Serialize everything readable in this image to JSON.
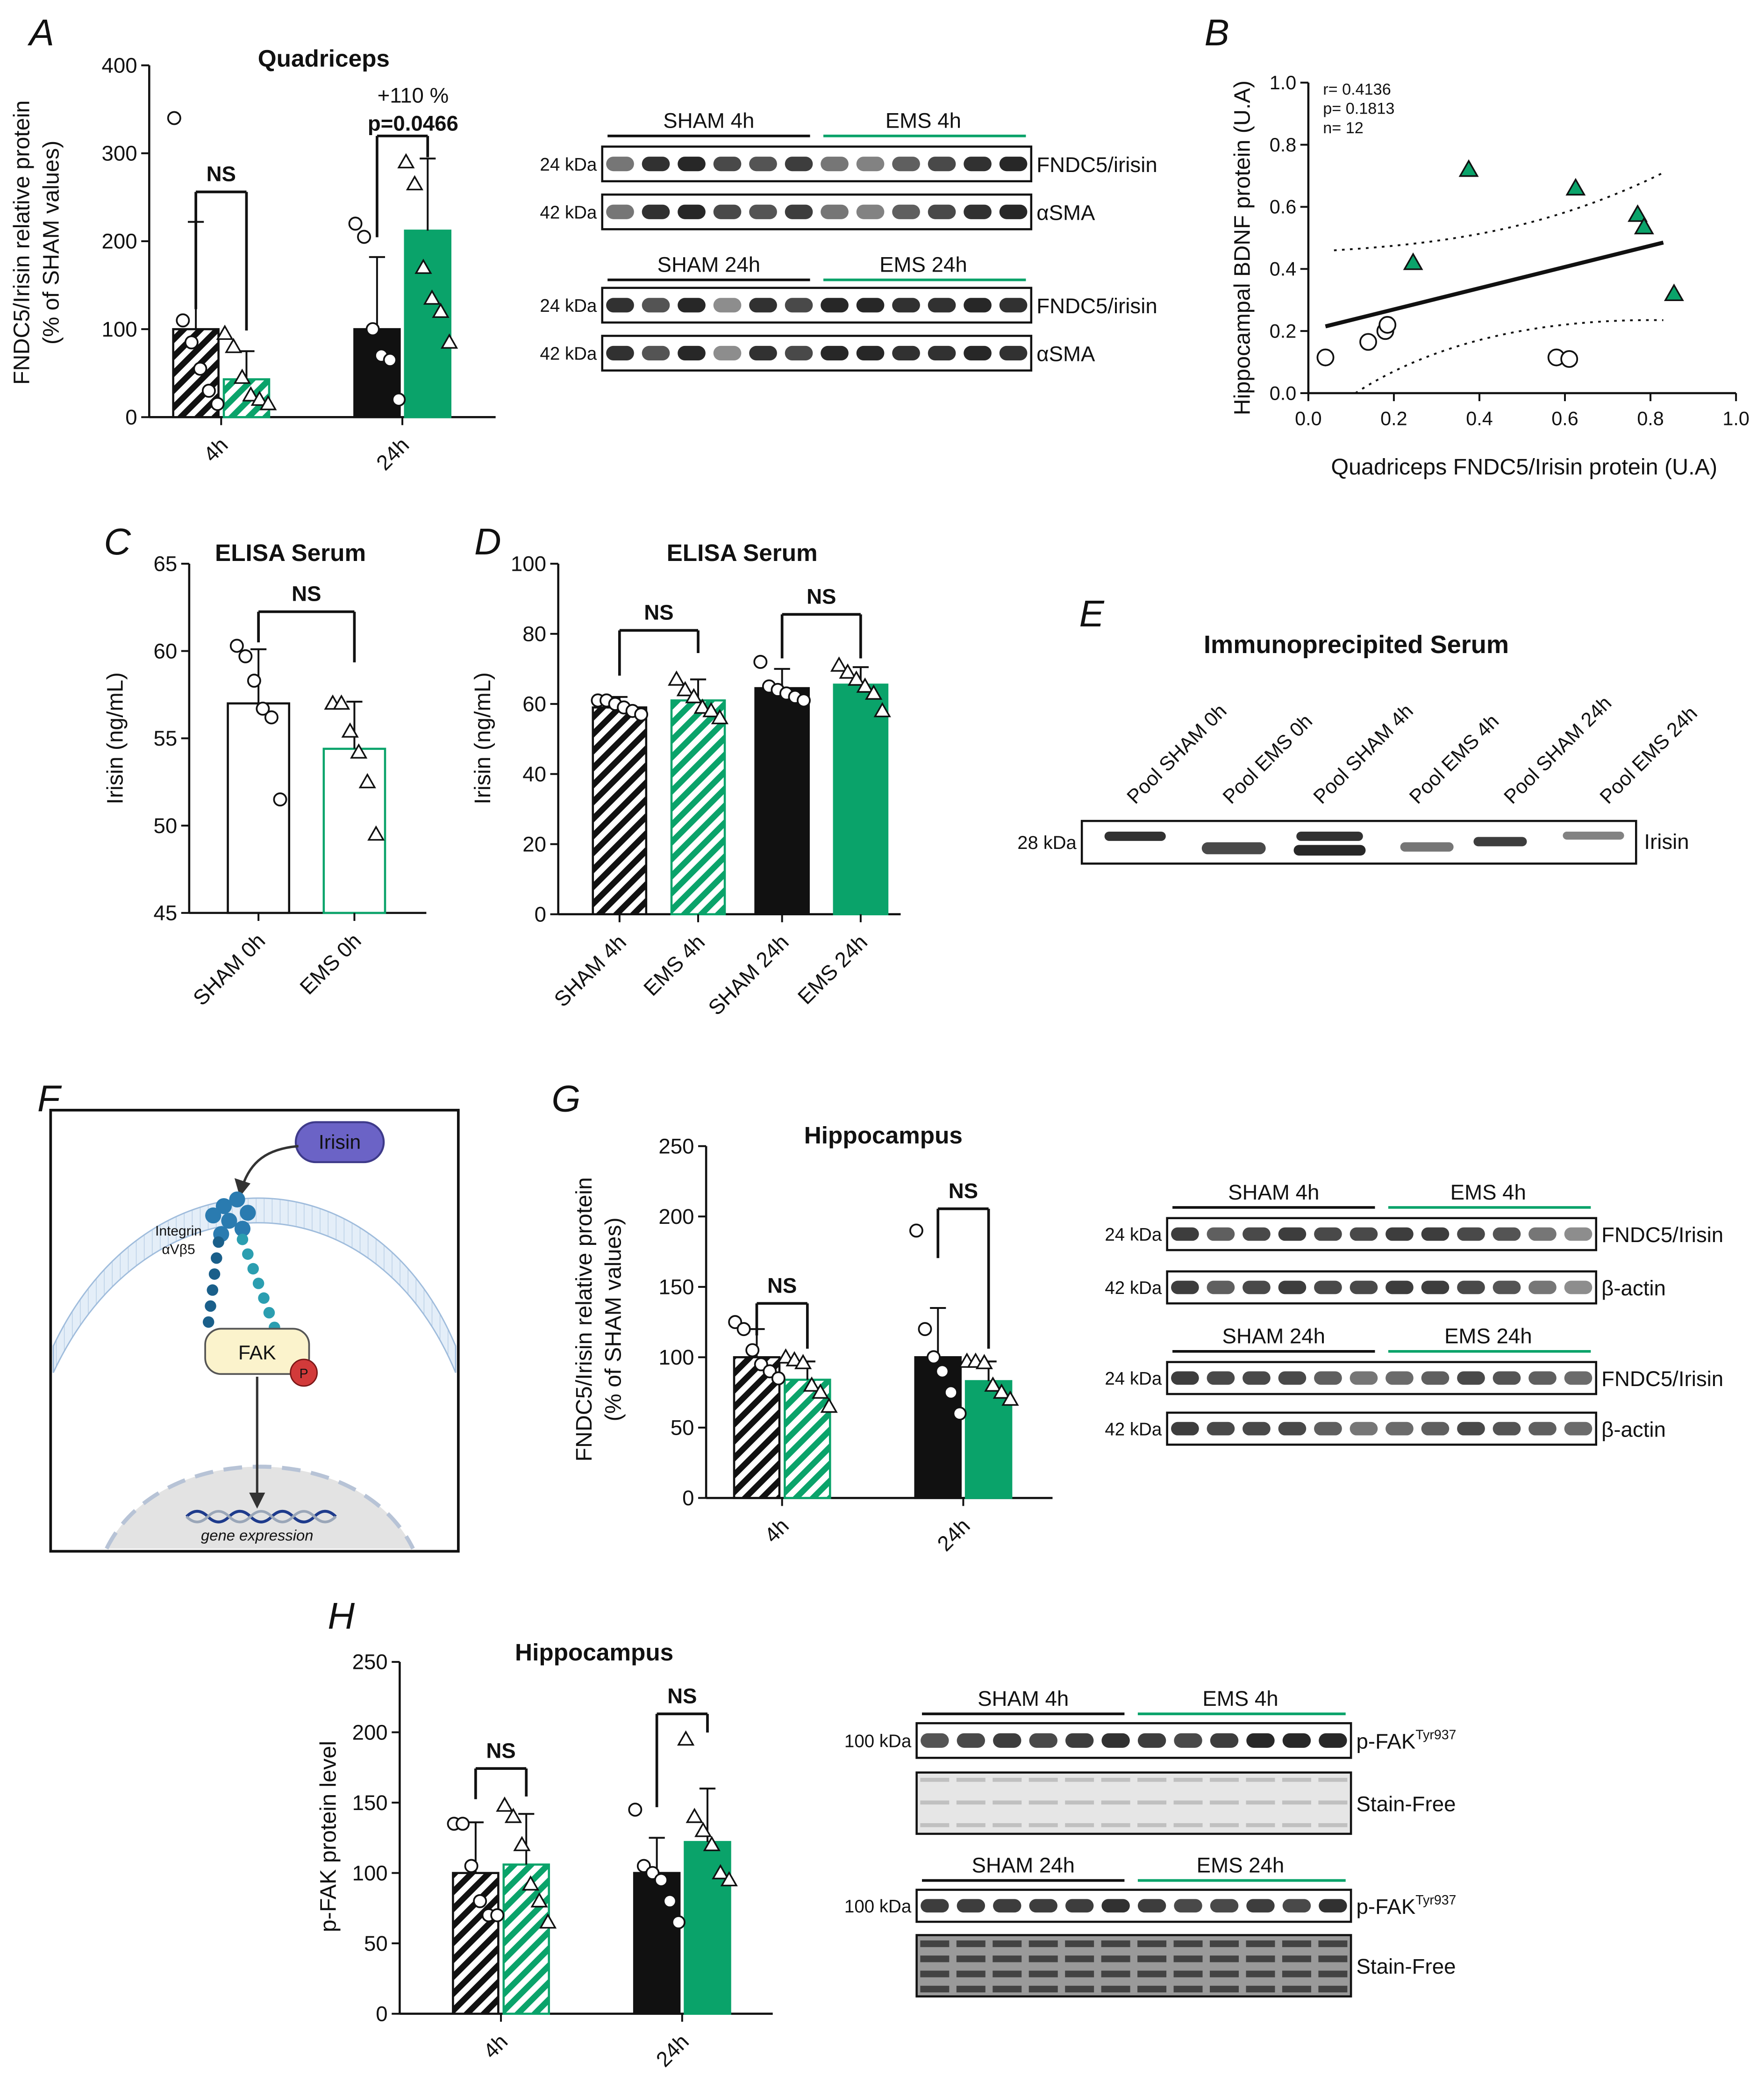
{
  "colors": {
    "green": "#0aa36a",
    "green_text": "#2fae72",
    "black": "#111111",
    "diagram_blue": "#2a7bb0",
    "irisin_purple": "#6b63c6"
  },
  "panel_labels": [
    "A",
    "B",
    "C",
    "D",
    "E",
    "F",
    "G",
    "H"
  ],
  "chart_data": [
    {
      "id": "A",
      "type": "bar",
      "title": "Quadriceps",
      "ylabel": "FNDC5/Irisin relative protein\n(% of SHAM values)",
      "ylim": [
        0,
        400
      ],
      "yticks": [
        0,
        100,
        200,
        300,
        400
      ],
      "groups": [
        "4h",
        "24h"
      ],
      "series": [
        {
          "name": "SHAM",
          "values": [
            100,
            100
          ],
          "sd": [
            122,
            82
          ]
        },
        {
          "name": "EMS",
          "values": [
            43,
            212
          ],
          "sd": [
            32,
            82
          ]
        }
      ],
      "points": {
        "SHAM": [
          [
            340,
            110,
            85,
            55,
            30,
            15
          ],
          [
            220,
            205,
            100,
            70,
            65,
            20
          ]
        ],
        "EMS": [
          [
            95,
            80,
            45,
            25,
            20,
            15
          ],
          [
            290,
            265,
            170,
            135,
            120,
            85
          ]
        ]
      },
      "annotations": [
        {
          "text": "NS",
          "group": "4h"
        },
        {
          "text": "+110 %",
          "group": "24h"
        },
        {
          "text": "p=0.0466",
          "group": "24h"
        }
      ]
    },
    {
      "id": "B",
      "type": "scatter",
      "xlabel": "Quadriceps FNDC5/Irisin protein (U.A)",
      "ylabel": "Hippocampal BDNF protein (U.A)",
      "xlim": [
        0,
        1
      ],
      "ylim": [
        0,
        1
      ],
      "ticks": [
        "0.0",
        "0.2",
        "0.4",
        "0.6",
        "0.8",
        "1.0"
      ],
      "stats": [
        "r= 0.4136",
        "p= 0.1813",
        "n= 12"
      ],
      "series": [
        {
          "name": "SHAM",
          "x": [
            0.04,
            0.14,
            0.18,
            0.185,
            0.58,
            0.61
          ],
          "y": [
            0.115,
            0.165,
            0.2,
            0.22,
            0.115,
            0.11
          ]
        },
        {
          "name": "EMS",
          "x": [
            0.245,
            0.375,
            0.625,
            0.77,
            0.785,
            0.855
          ],
          "y": [
            0.42,
            0.72,
            0.66,
            0.575,
            0.535,
            0.32
          ]
        }
      ],
      "fit": {
        "x": [
          0.04,
          0.83
        ],
        "y": [
          0.215,
          0.485
        ]
      }
    },
    {
      "id": "C",
      "type": "bar",
      "title": "ELISA Serum",
      "ylabel": "Irisin (ng/mL)",
      "ylim": [
        45,
        65
      ],
      "yticks": [
        45,
        50,
        55,
        60,
        65
      ],
      "categories": [
        "SHAM 0h",
        "EMS 0h"
      ],
      "values": [
        57,
        54.4
      ],
      "sd": [
        3.1,
        2.7
      ],
      "points": [
        [
          60.3,
          59.7,
          58.3,
          56.7,
          56.2,
          51.5
        ],
        [
          57.0,
          57.0,
          55.4,
          54.2,
          52.5,
          49.5
        ]
      ],
      "annotations": [
        {
          "text": "NS"
        }
      ]
    },
    {
      "id": "D",
      "type": "bar",
      "title": "ELISA Serum",
      "ylabel": "Irisin (ng/mL)",
      "ylim": [
        0,
        100
      ],
      "yticks": [
        0,
        20,
        40,
        60,
        80,
        100
      ],
      "categories": [
        "SHAM 4h",
        "EMS 4h",
        "SHAM 24h",
        "EMS 24h"
      ],
      "values": [
        59,
        61,
        64.5,
        65.5
      ],
      "sd": [
        3,
        6,
        5.5,
        5
      ],
      "points": [
        [
          61,
          61,
          60,
          59,
          58,
          57
        ],
        [
          67,
          64,
          62,
          59,
          58,
          56
        ],
        [
          72,
          65,
          64,
          63,
          62,
          61
        ],
        [
          71,
          69,
          67,
          65,
          63,
          58
        ]
      ],
      "annotations": [
        {
          "text": "NS"
        },
        {
          "text": "NS"
        }
      ]
    },
    {
      "id": "G",
      "type": "bar",
      "title": "Hippocampus",
      "ylabel": "FNDC5/Irisin relative protein\n(% of SHAM values)",
      "ylim": [
        0,
        250
      ],
      "yticks": [
        0,
        50,
        100,
        150,
        200,
        250
      ],
      "groups": [
        "4h",
        "24h"
      ],
      "series": [
        {
          "name": "SHAM",
          "values": [
            100,
            100
          ],
          "sd": [
            20,
            35
          ]
        },
        {
          "name": "EMS",
          "values": [
            84,
            83
          ],
          "sd": [
            13,
            14
          ]
        }
      ],
      "points": {
        "SHAM": [
          [
            125,
            120,
            105,
            95,
            90,
            85
          ],
          [
            190,
            120,
            100,
            90,
            75,
            60
          ]
        ],
        "EMS": [
          [
            100,
            98,
            96,
            80,
            75,
            65
          ],
          [
            97,
            97,
            96,
            80,
            75,
            70
          ]
        ]
      },
      "annotations": [
        {
          "text": "NS"
        },
        {
          "text": "NS"
        }
      ]
    },
    {
      "id": "H",
      "type": "bar",
      "title": "Hippocampus",
      "ylabel": "p-FAK protein level",
      "ylim": [
        0,
        250
      ],
      "yticks": [
        0,
        50,
        100,
        150,
        200,
        250
      ],
      "groups": [
        "4h",
        "24h"
      ],
      "series": [
        {
          "name": "SHAM",
          "values": [
            100,
            100
          ],
          "sd": [
            36,
            25
          ]
        },
        {
          "name": "EMS",
          "values": [
            106,
            122
          ],
          "sd": [
            36,
            38
          ]
        }
      ],
      "points": {
        "SHAM": [
          [
            135,
            135,
            105,
            80,
            70,
            70
          ],
          [
            145,
            105,
            100,
            95,
            80,
            65
          ]
        ],
        "EMS": [
          [
            148,
            140,
            120,
            92,
            80,
            65
          ],
          [
            195,
            140,
            130,
            120,
            100,
            95
          ]
        ]
      },
      "annotations": [
        {
          "text": "NS"
        },
        {
          "text": "NS"
        }
      ]
    }
  ],
  "blots": {
    "A": {
      "sets": [
        {
          "sham": "SHAM 4h",
          "ems": "EMS 4h",
          "rows": [
            {
              "kda": "24 kDa",
              "name": "FNDC5/irisin"
            },
            {
              "kda": "42 kDa",
              "name": "αSMA"
            }
          ]
        },
        {
          "sham": "SHAM 24h",
          "ems": "EMS 24h",
          "rows": [
            {
              "kda": "24 kDa",
              "name": "FNDC5/irisin"
            },
            {
              "kda": "42 kDa",
              "name": "αSMA"
            }
          ]
        }
      ]
    },
    "G": {
      "sets": [
        {
          "sham": "SHAM 4h",
          "ems": "EMS 4h",
          "rows": [
            {
              "kda": "24 kDa",
              "name": "FNDC5/Irisin"
            },
            {
              "kda": "42 kDa",
              "name": "β-actin"
            }
          ]
        },
        {
          "sham": "SHAM 24h",
          "ems": "EMS 24h",
          "rows": [
            {
              "kda": "24 kDa",
              "name": "FNDC5/Irisin"
            },
            {
              "kda": "42 kDa",
              "name": "β-actin"
            }
          ]
        }
      ]
    },
    "H": {
      "sets": [
        {
          "sham": "SHAM 4h",
          "ems": "EMS 4h",
          "rows": [
            {
              "kda": "100 kDa",
              "name": "p-FAK",
              "sup": "Tyr937"
            },
            {
              "kda": "",
              "name": "Stain-Free"
            }
          ]
        },
        {
          "sham": "SHAM 24h",
          "ems": "EMS 24h",
          "rows": [
            {
              "kda": "100 kDa",
              "name": "p-FAK",
              "sup": "Tyr937"
            },
            {
              "kda": "",
              "name": "Stain-Free"
            }
          ]
        }
      ]
    },
    "E": {
      "title": "Immunoprecipited  Serum",
      "lanes": [
        "Pool SHAM 0h",
        "Pool EMS 0h",
        "Pool SHAM 4h",
        "Pool EMS 4h",
        "Pool SHAM 24h",
        "Pool EMS 24h"
      ],
      "kda": "28 kDa",
      "name": "Irisin"
    }
  },
  "diagram_F": {
    "ligand": "Irisin",
    "receptor": "Integrin\nαVβ5",
    "kinase": "FAK",
    "phospho": "P",
    "outcome": "gene expression"
  }
}
